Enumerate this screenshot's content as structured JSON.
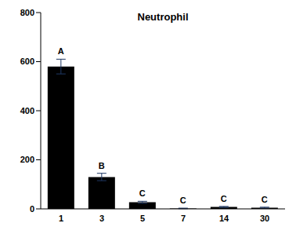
{
  "chart_data": {
    "type": "bar",
    "title": "Neutrophil",
    "categories": [
      "1",
      "3",
      "5",
      "7",
      "14",
      "30"
    ],
    "values": [
      580,
      130,
      27,
      2,
      8,
      5
    ],
    "errors": [
      30,
      15,
      4,
      1,
      2,
      2
    ],
    "annotations": [
      "A",
      "B",
      "C",
      "C",
      "C",
      "C"
    ],
    "color": "#000000",
    "ylim": [
      0,
      800
    ],
    "yticks": [
      0,
      200,
      400,
      600,
      800
    ],
    "grid": false
  }
}
